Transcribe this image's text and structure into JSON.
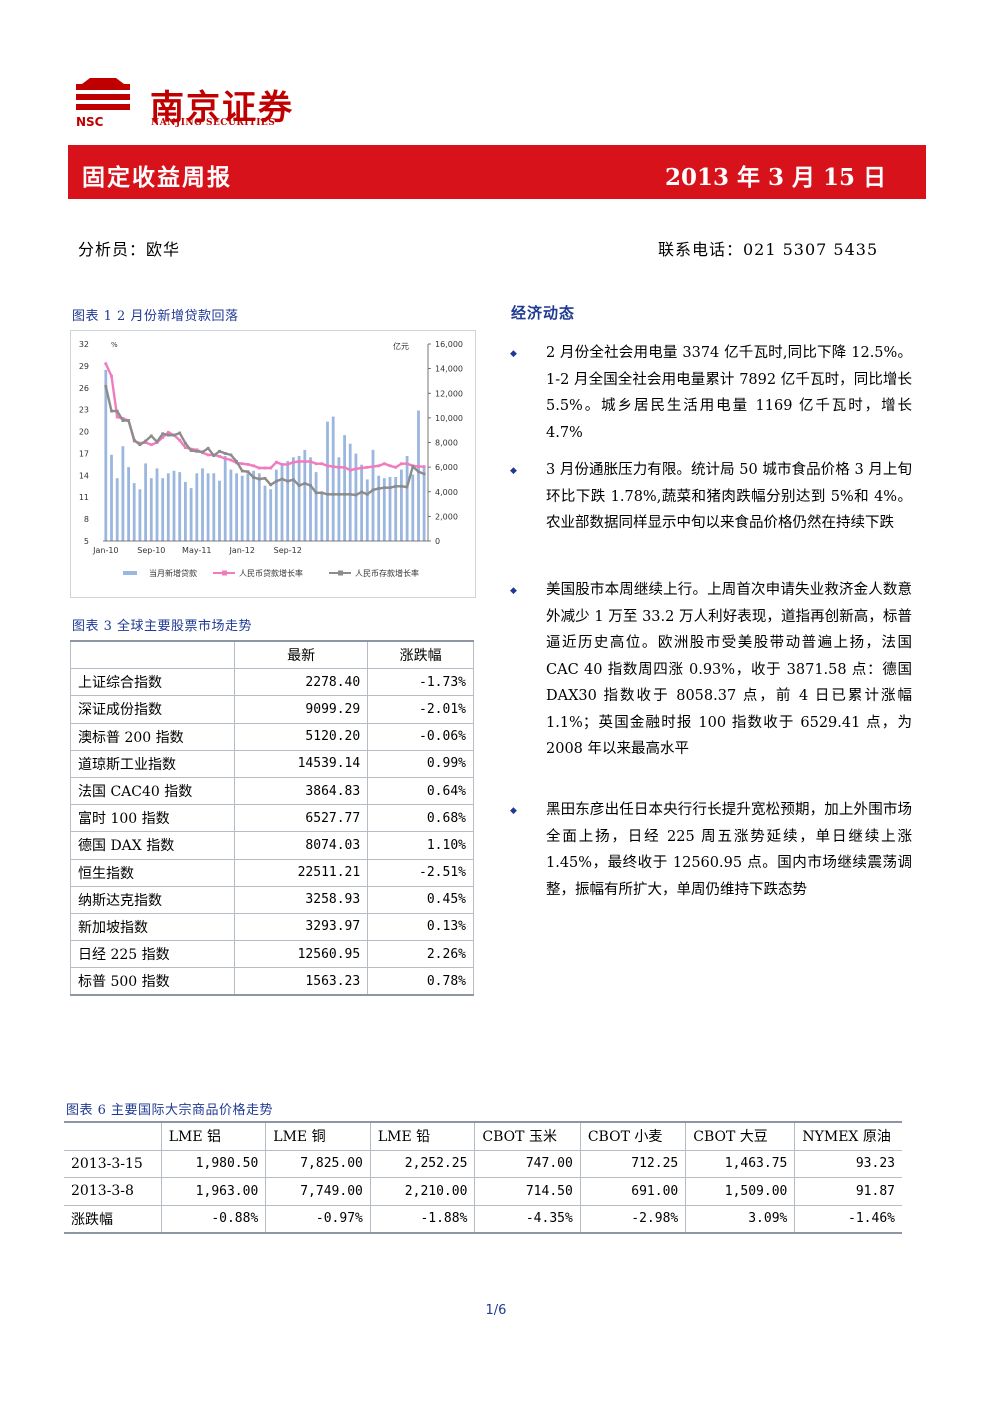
{
  "brand": {
    "cn": "南京证券",
    "en": "NANJING SECURITIES",
    "abbr": "NSC",
    "color": "#c00000"
  },
  "header": {
    "title": "固定收益周报",
    "date": "2013 年 3 月 15 日"
  },
  "meta": {
    "analyst": "分析员：欧华",
    "phone": "联系电话：021 5307 5435"
  },
  "chart1": {
    "caption": "图表 1   2 月份新增贷款回落",
    "chart_data": {
      "type": "bar",
      "left_unit": "%",
      "right_unit": "亿元",
      "x_ticks": [
        "Jan-10",
        "Sep-10",
        "May-11",
        "Jan-12",
        "Sep-12"
      ],
      "left_ticks": [
        "32",
        "29",
        "26",
        "23",
        "20",
        "17",
        "14",
        "11",
        "8",
        "5"
      ],
      "right_ticks": [
        "16,000",
        "14,000",
        "12,000",
        "10,000",
        "8,000",
        "6,000",
        "4,000",
        "2,000",
        "0"
      ],
      "left_range": [
        5,
        32
      ],
      "right_range": [
        0,
        16000
      ],
      "series": [
        {
          "name": "当月新增贷款",
          "type": "bar",
          "axis": "right",
          "color": "#9bb7e0",
          "values": [
            13900,
            7000,
            5100,
            7700,
            6000,
            4700,
            4200,
            6300,
            5100,
            5900,
            5100,
            5500,
            5700,
            5600,
            4800,
            4300,
            5500,
            5900,
            5500,
            5500,
            4900,
            6900,
            5800,
            5500,
            5300,
            5500,
            5700,
            5500,
            4500,
            4200,
            5800,
            6200,
            6500,
            6800,
            6900,
            7400,
            6800,
            5600,
            4000,
            9700,
            10100,
            6800,
            8600,
            7900,
            7100,
            6200,
            5000,
            7400,
            5300,
            5100,
            5200,
            5200,
            5800,
            6900,
            5400,
            10600,
            6000
          ]
        },
        {
          "name": "人民币贷款增长率",
          "type": "line",
          "axis": "left",
          "color": "#f07cc0",
          "values": [
            29.3,
            27.6,
            22.0,
            21.8,
            21.5,
            18.7,
            18.4,
            18.5,
            18.2,
            18.5,
            19.2,
            19.9,
            19.5,
            18.8,
            17.8,
            17.6,
            17.5,
            17.1,
            16.8,
            16.8,
            16.6,
            16.3,
            16.1,
            15.7,
            15.6,
            15.5,
            15.3,
            15.0,
            15.0,
            15.0,
            15.8,
            15.5,
            15.5,
            15.8,
            15.9,
            15.9,
            15.9,
            15.6,
            15.6,
            15.3,
            15.2,
            15.1,
            15.1,
            14.7,
            14.9,
            15.0,
            15.1,
            15.2,
            15.3,
            15.6,
            15.3,
            15.1,
            15.6,
            15.6,
            15.3,
            15.2,
            15.2
          ]
        },
        {
          "name": "人民币存款增长率",
          "type": "line",
          "axis": "left",
          "color": "#8c8c8c",
          "values": [
            26.2,
            22.8,
            22.8,
            21.5,
            21.5,
            18.8,
            18.2,
            18.7,
            19.4,
            18.6,
            19.7,
            19.5,
            19.5,
            19.8,
            18.4,
            17.4,
            17.3,
            17.2,
            17.7,
            16.7,
            17.3,
            17.0,
            16.8,
            15.9,
            14.6,
            14.5,
            13.7,
            13.5,
            13.6,
            12.7,
            13.2,
            13.5,
            13.2,
            13.4,
            12.6,
            12.9,
            12.6,
            11.6,
            11.6,
            11.4,
            11.4,
            11.4,
            11.4,
            11.4,
            11.3,
            11.7,
            11.4,
            12.0,
            12.2,
            12.3,
            12.3,
            12.5,
            12.5,
            12.4,
            15.2,
            14.5,
            14.2
          ]
        }
      ]
    }
  },
  "table3": {
    "caption": "图表 3 全球主要股票市场走势",
    "headers": [
      "",
      "最新",
      "涨跌幅"
    ],
    "rows": [
      [
        "上证综合指数",
        "2278.40",
        "-1.73%"
      ],
      [
        "深证成份指数",
        "9099.29",
        "-2.01%"
      ],
      [
        "澳标普 200 指数",
        "5120.20",
        "-0.06%"
      ],
      [
        "道琼斯工业指数",
        "14539.14",
        "0.99%"
      ],
      [
        "法国 CAC40 指数",
        "3864.83",
        "0.64%"
      ],
      [
        "富时 100 指数",
        "6527.77",
        "0.68%"
      ],
      [
        "德国 DAX 指数",
        "8074.03",
        "1.10%"
      ],
      [
        "恒生指数",
        "22511.21",
        "-2.51%"
      ],
      [
        "纳斯达克指数",
        "3258.93",
        "0.45%"
      ],
      [
        "新加坡指数",
        "3293.97",
        "0.13%"
      ],
      [
        "日经 225 指数",
        "12560.95",
        "2.26%"
      ],
      [
        "标普 500 指数",
        "1563.23",
        "0.78%"
      ]
    ]
  },
  "economy": {
    "title": "经济动态",
    "bullet": "◆",
    "paragraphs": [
      "2 月份全社会用电量 3374 亿千瓦时,同比下降 12.5%。1-2 月全国全社会用电量累计 7892 亿千瓦时，同比增长 5.5%。城乡居民生活用电量 1169 亿千瓦时，增长 4.7%",
      "3 月份通胀压力有限。统计局 50 城市食品价格 3 月上旬环比下跌 1.78%,蔬菜和猪肉跌幅分别达到 5%和 4%。农业部数据同样显示中旬以来食品价格仍然在持续下跌",
      "美国股市本周继续上行。上周首次申请失业救济金人数意外减少 1 万至 33.2 万人利好表现，道指再创新高，标普逼近历史高位。欧洲股市受美股带动普遍上扬，法国 CAC 40 指数周四涨 0.93%，收于 3871.58 点：德国 DAX30 指数收于 8058.37 点，前 4 日已累计涨幅 1.1%；英国金融时报 100 指数收于 6529.41 点，为 2008 年以来最高水平",
      "黑田东彦出任日本央行行长提升宽松预期，加上外围市场全面上扬，日经 225 周五涨势延续，单日继续上涨 1.45%，最终收于 12560.95 点。国内市场继续震荡调整，振幅有所扩大，单周仍维持下跌态势"
    ]
  },
  "table6": {
    "caption": "图表 6    主要国际大宗商品价格走势",
    "headers": [
      "",
      "LME 铝",
      "LME 铜",
      "LME 铅",
      "CBOT 玉米",
      "CBOT 小麦",
      "CBOT 大豆",
      "NYMEX 原油"
    ],
    "rows": [
      [
        "2013-3-15",
        "1,980.50",
        "7,825.00",
        "2,252.25",
        "747.00",
        "712.25",
        "1,463.75",
        "93.23"
      ],
      [
        "2013-3-8",
        "1,963.00",
        "7,749.00",
        "2,210.00",
        "714.50",
        "691.00",
        "1,509.00",
        "91.87"
      ],
      [
        "涨跌幅",
        "-0.88%",
        "-0.97%",
        "-1.88%",
        "-4.35%",
        "-2.98%",
        "3.09%",
        "-1.46%"
      ]
    ]
  },
  "footer": {
    "page": "1/6"
  },
  "colors": {
    "accent_red": "#d7121b",
    "caption_blue": "#1f3a93"
  }
}
